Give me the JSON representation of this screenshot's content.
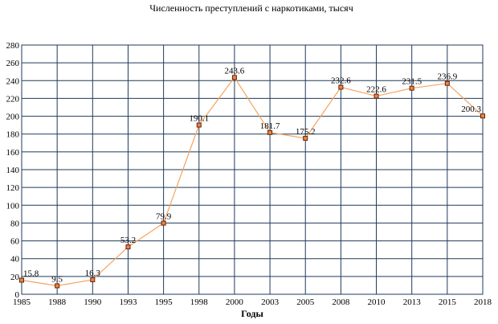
{
  "chart_data": {
    "type": "line",
    "title": "Численность преступлений с наркотиками, тысяч",
    "xlabel": "Годы",
    "ylabel": "",
    "categories": [
      "1985",
      "1988",
      "1990",
      "1993",
      "1995",
      "1998",
      "2000",
      "2003",
      "2005",
      "2008",
      "2010",
      "2013",
      "2015",
      "2018"
    ],
    "series": [
      {
        "values": [
          15.8,
          9.5,
          16.3,
          53.2,
          79.9,
          190.1,
          243.6,
          181.7,
          175.2,
          232.6,
          222.6,
          231.5,
          236.9,
          200.3
        ],
        "labels": [
          "15.8",
          "9.5",
          "16.3",
          "53.2",
          "79.9",
          "190.1",
          "243.6",
          "181.7",
          "175.2",
          "232.6",
          "222.6",
          "231.5",
          "236.9",
          "200.3"
        ],
        "color": "#f4a460",
        "marker_color": "#e8874a"
      }
    ],
    "ylim": [
      0,
      280
    ],
    "yticks": [
      "0",
      "20",
      "40",
      "60",
      "80",
      "100",
      "120",
      "140",
      "160",
      "180",
      "200",
      "220",
      "240",
      "260",
      "280"
    ],
    "grid": true,
    "legend": "none"
  }
}
